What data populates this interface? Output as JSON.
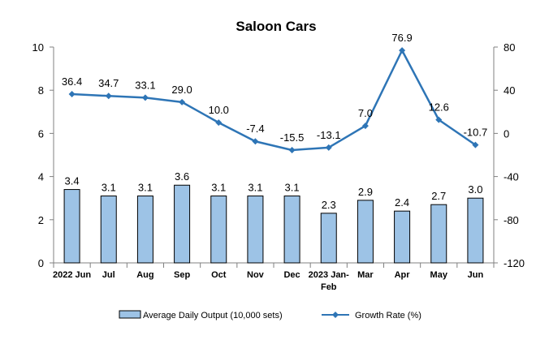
{
  "chart_data": {
    "type": "bar+line",
    "title": "Saloon Cars",
    "categories": [
      [
        "2022 Jun"
      ],
      [
        "Jul"
      ],
      [
        "Aug"
      ],
      [
        "Sep"
      ],
      [
        "Oct"
      ],
      [
        "Nov"
      ],
      [
        "Dec"
      ],
      [
        "2023 Jan-",
        "Feb"
      ],
      [
        "Mar"
      ],
      [
        "Apr"
      ],
      [
        "May"
      ],
      [
        "Jun"
      ]
    ],
    "series": [
      {
        "name": "Average Daily Output (10,000 sets)",
        "type": "bar",
        "axis": "left",
        "color": "#9dc3e6",
        "values": [
          3.4,
          3.1,
          3.1,
          3.6,
          3.1,
          3.1,
          3.1,
          2.3,
          2.9,
          2.4,
          2.7,
          3.0
        ],
        "labels": [
          "3.4",
          "3.1",
          "3.1",
          "3.6",
          "3.1",
          "3.1",
          "3.1",
          "2.3",
          "2.9",
          "2.4",
          "2.7",
          "3.0"
        ]
      },
      {
        "name": "Growth Rate (%)",
        "type": "line",
        "axis": "right",
        "color": "#2e75b6",
        "values": [
          36.4,
          34.7,
          33.1,
          29.0,
          10.0,
          -7.4,
          -15.5,
          -13.1,
          7.0,
          76.9,
          12.6,
          -10.7
        ],
        "labels": [
          "36.4",
          "34.7",
          "33.1",
          "29.0",
          "10.0",
          "-7.4",
          "-15.5",
          "-13.1",
          "7.0",
          "76.9",
          "12.6",
          "-10.7"
        ]
      }
    ],
    "y_left": {
      "min": 0,
      "max": 10,
      "ticks": [
        "0",
        "2",
        "4",
        "6",
        "8",
        "10"
      ]
    },
    "y_right": {
      "min": -120,
      "max": 80,
      "ticks": [
        "-120",
        "-80",
        "-40",
        "0",
        "40",
        "80"
      ]
    },
    "grid": false,
    "legend_position": "bottom"
  }
}
